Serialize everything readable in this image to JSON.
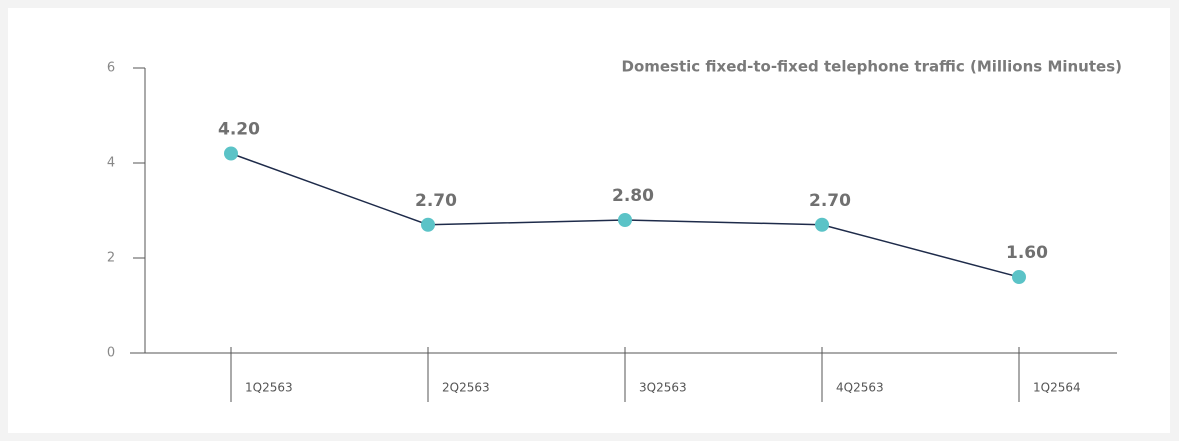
{
  "chart_data": {
    "type": "line",
    "title": "Domestic fixed-to-fixed telephone traffic (Millions Minutes)",
    "categories": [
      "1Q2563",
      "2Q2563",
      "3Q2563",
      "4Q2563",
      "1Q2564"
    ],
    "values": [
      4.2,
      2.7,
      2.8,
      2.7,
      1.6
    ],
    "value_labels": [
      "4.20",
      "2.70",
      "2.80",
      "2.70",
      "1.60"
    ],
    "color": "#1e2b4a",
    "marker_color": "#5bc3c7",
    "ylim": [
      0,
      6
    ],
    "yticks": [
      0,
      2,
      4,
      6
    ],
    "grid": false
  }
}
